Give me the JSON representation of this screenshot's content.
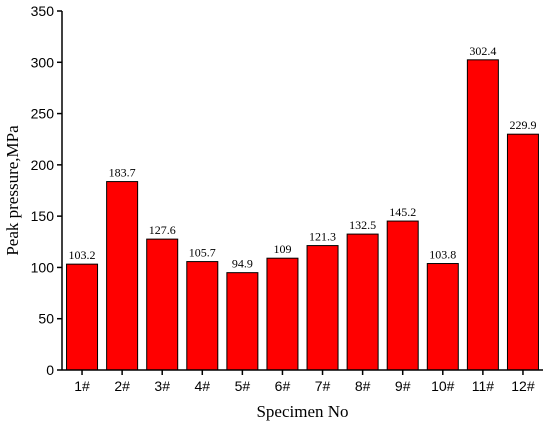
{
  "chart_data": {
    "type": "bar",
    "title": "",
    "xlabel": "Specimen No",
    "ylabel": "Peak pressure,MPa",
    "categories": [
      "1#",
      "2#",
      "3#",
      "4#",
      "5#",
      "6#",
      "7#",
      "8#",
      "9#",
      "10#",
      "11#",
      "12#"
    ],
    "values": [
      103.2,
      183.7,
      127.6,
      105.7,
      94.9,
      109,
      121.3,
      132.5,
      145.2,
      103.8,
      302.4,
      229.9
    ],
    "data_labels": [
      "103.2",
      "183.7",
      "127.6",
      "105.7",
      "94.9",
      "109",
      "121.3",
      "132.5",
      "145.2",
      "103.8",
      "302.4",
      "229.9"
    ],
    "ylim": [
      0,
      350
    ],
    "yticks": [
      0,
      50,
      100,
      150,
      200,
      250,
      300,
      350
    ],
    "grid": false,
    "legend": "none",
    "bar_color": "#ff0000"
  }
}
